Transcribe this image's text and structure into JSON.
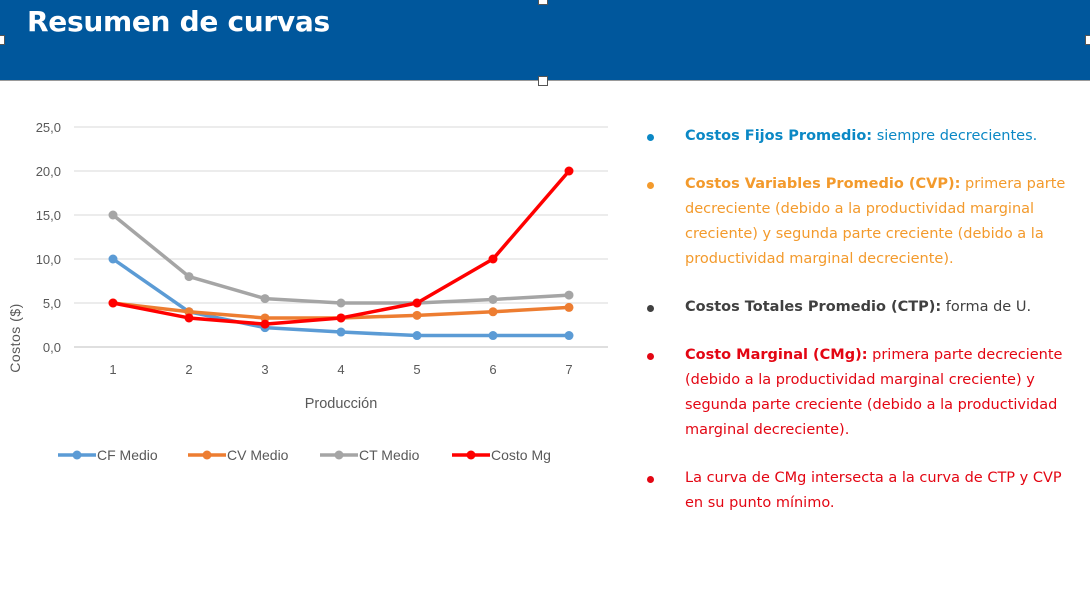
{
  "header": {
    "title": "Resumen de curvas",
    "background": "#00579c"
  },
  "chart_data": {
    "type": "line",
    "title": "",
    "xlabel": "Producción",
    "ylabel": "Costos ($)",
    "x": [
      1,
      2,
      3,
      4,
      5,
      6,
      7
    ],
    "x_tick_labels": [
      "1",
      "2",
      "3",
      "4",
      "5",
      "6",
      "7"
    ],
    "y_tick_labels": [
      "25,0",
      "20,0",
      "15,0",
      "10,0",
      "5,0",
      "0,0"
    ],
    "ylim": [
      0,
      25
    ],
    "grid": "horizontal",
    "legend_position": "bottom",
    "series": [
      {
        "name": "CF Medio",
        "color": "#5b9bd5",
        "values": [
          10.0,
          4.0,
          2.2,
          1.7,
          1.3,
          1.3,
          1.3
        ]
      },
      {
        "name": "CV Medio",
        "color": "#ed7d31",
        "values": [
          5.0,
          4.0,
          3.3,
          3.3,
          3.6,
          4.0,
          4.5
        ]
      },
      {
        "name": "CT Medio",
        "color": "#a5a5a5",
        "values": [
          15.0,
          8.0,
          5.5,
          5.0,
          5.0,
          5.4,
          5.9
        ]
      },
      {
        "name": "Costo Mg",
        "color": "#ff0000",
        "values": [
          5.0,
          3.3,
          2.6,
          3.3,
          5.0,
          10.0,
          20.0
        ]
      }
    ]
  },
  "bullets": [
    {
      "bold": "Costos Fijos Promedio:",
      "text": " siempre decrecientes.",
      "color": "#0b88c5"
    },
    {
      "bold": "Costos Variables Promedio (CVP):",
      "text": " primera parte decreciente (debido a la productividad marginal creciente) y segunda parte creciente (debido a la productividad marginal decreciente).",
      "color": "#f39a2c"
    },
    {
      "bold": "Costos Totales Promedio (CTP):",
      "text": " forma de U.",
      "color": "#404040"
    },
    {
      "bold": "Costo Marginal (CMg):",
      "text": " primera parte decreciente (debido a la productividad marginal creciente) y  segunda parte creciente (debido a la productividad marginal decreciente).",
      "color": "#e30613"
    },
    {
      "bold": "",
      "text": "La curva de CMg intersecta a la curva de CTP y CVP  en su punto mínimo.",
      "color": "#e30613"
    }
  ]
}
